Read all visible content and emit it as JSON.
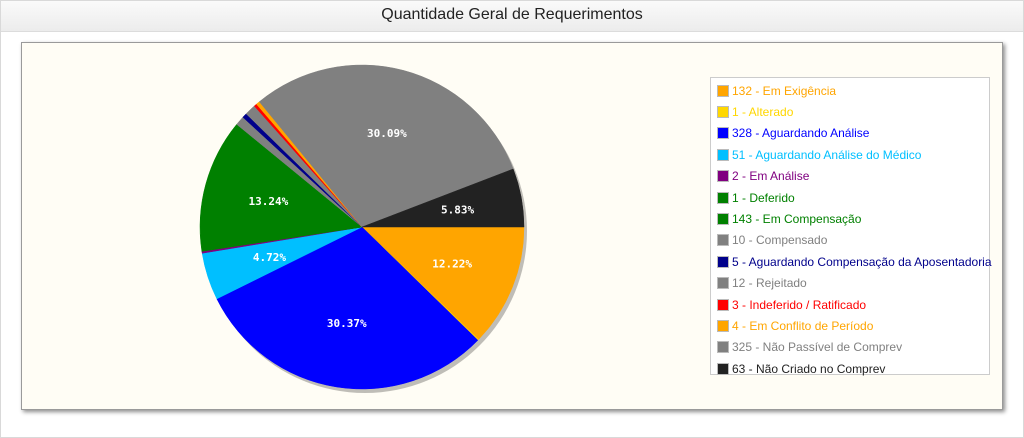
{
  "header": {
    "title": "Quantidade Geral de Requerimentos"
  },
  "chart_data": {
    "type": "pie",
    "title": "Quantidade Geral de Requerimentos",
    "legend_position": "right",
    "slices": [
      {
        "label": "132 - Em Exigência",
        "value": 132,
        "color": "#ffa500",
        "text_color": "#ffa500"
      },
      {
        "label": "1 - Alterado",
        "value": 1,
        "color": "#ffd700",
        "text_color": "#ffd700"
      },
      {
        "label": "328 - Aguardando Análise",
        "value": 328,
        "color": "#0000ff",
        "text_color": "#0000ff"
      },
      {
        "label": "51 - Aguardando Análise do Médico",
        "value": 51,
        "color": "#00bfff",
        "text_color": "#00bfff"
      },
      {
        "label": "2 - Em Análise",
        "value": 2,
        "color": "#800080",
        "text_color": "#800080"
      },
      {
        "label": "1 - Deferido",
        "value": 1,
        "color": "#008000",
        "text_color": "#008000"
      },
      {
        "label": "143 - Em Compensação",
        "value": 143,
        "color": "#008000",
        "text_color": "#008000"
      },
      {
        "label": "10 - Compensado",
        "value": 10,
        "color": "#808080",
        "text_color": "#808080"
      },
      {
        "label": "5 - Aguardando Compensação da Aposentadoria",
        "value": 5,
        "color": "#00008b",
        "text_color": "#00008b"
      },
      {
        "label": "12 - Rejeitado",
        "value": 12,
        "color": "#808080",
        "text_color": "#808080"
      },
      {
        "label": "3 - Indeferido / Ratificado",
        "value": 3,
        "color": "#ff0000",
        "text_color": "#ff0000"
      },
      {
        "label": "4 - Em Conflito de Período",
        "value": 4,
        "color": "#ffa500",
        "text_color": "#ffa500"
      },
      {
        "label": "325 - Não Passível de Comprev",
        "value": 325,
        "color": "#808080",
        "text_color": "#808080"
      },
      {
        "label": "63 - Não Criado no Comprev",
        "value": 63,
        "color": "#222222",
        "text_color": "#222222"
      }
    ],
    "percent_labels": [
      {
        "index": 0,
        "text": "12.22%"
      },
      {
        "index": 2,
        "text": "30.37%"
      },
      {
        "index": 3,
        "text": "4.72%"
      },
      {
        "index": 6,
        "text": "13.24%"
      },
      {
        "index": 12,
        "text": "30.09%"
      },
      {
        "index": 13,
        "text": "5.83%"
      }
    ]
  }
}
